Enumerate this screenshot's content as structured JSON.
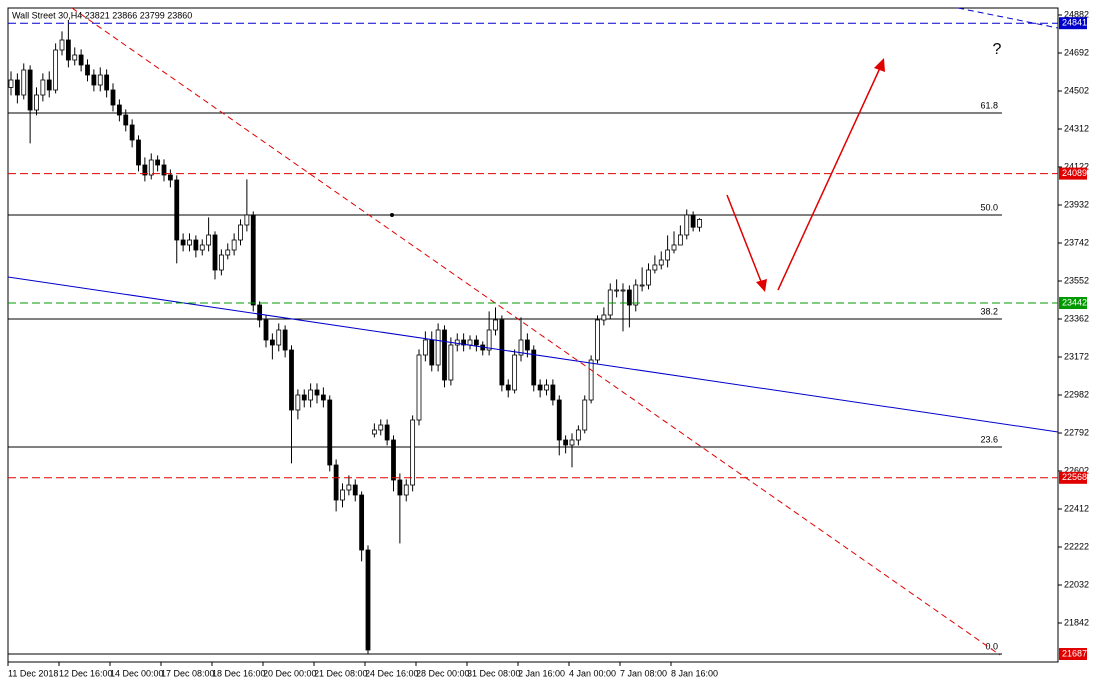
{
  "chart_data": {
    "type": "candlestick",
    "title": "Wall Street 30,H4  23821 23866 23799 23860",
    "categories": [
      "11 Dec 2018",
      null,
      null,
      null,
      null,
      null,
      null,
      null,
      "12 Dec 16:00",
      null,
      null,
      null,
      null,
      null,
      null,
      null,
      "14 Dec 00:00",
      null,
      null,
      null,
      null,
      null,
      null,
      null,
      "17 Dec 08:00",
      null,
      null,
      null,
      null,
      null,
      null,
      null,
      "18 Dec 16:00",
      null,
      null,
      null,
      null,
      null,
      null,
      null,
      "20 Dec 00:00",
      null,
      null,
      null,
      null,
      null,
      null,
      null,
      "21 Dec 08:00",
      null,
      null,
      null,
      null,
      null,
      null,
      null,
      "24 Dec 16:00",
      null,
      null,
      null,
      null,
      null,
      null,
      null,
      "28 Dec 00:00",
      null,
      null,
      null,
      null,
      null,
      null,
      null,
      "31 Dec 08:00",
      null,
      null,
      null,
      null,
      null,
      null,
      null,
      "2 Jan 16:00",
      null,
      null,
      null,
      null,
      null,
      null,
      null,
      "4 Jan 00:00",
      null,
      null,
      null,
      null,
      null,
      null,
      null,
      "7 Jan 08:00",
      null,
      null,
      null,
      null,
      null,
      null,
      null,
      "8 Jan 16:00",
      null,
      null,
      null,
      null
    ],
    "open": [
      24520,
      24557,
      24482,
      24607,
      24407,
      24482,
      24557,
      24507,
      24707,
      24757,
      24657,
      24682,
      24632,
      24582,
      24532,
      24582,
      24507,
      24432,
      24382,
      24332,
      24257,
      24132,
      24082,
      24157,
      24132,
      24082,
      24057,
      23757,
      23732,
      23757,
      23707,
      23732,
      23782,
      23607,
      23682,
      23707,
      23757,
      23832,
      23882,
      23432,
      23357,
      23257,
      23232,
      23307,
      23207,
      22907,
      22982,
      22957,
      23007,
      22982,
      22957,
      22632,
      22457,
      22507,
      22532,
      22482,
      22207,
      22787,
      22807,
      22832,
      22757,
      22557,
      22482,
      22532,
      22857,
      23182,
      23257,
      23132,
      23307,
      23057,
      23232,
      23257,
      23232,
      23257,
      23232,
      23207,
      23307,
      23357,
      23032,
      23007,
      23182,
      23257,
      23207,
      23032,
      23007,
      23032,
      22957,
      22757,
      22732,
      22757,
      22807,
      22957,
      23157,
      23357,
      23382,
      23507,
      23507,
      23507,
      23432,
      23532,
      23532,
      23607,
      23632,
      23657,
      23707,
      23732,
      23782,
      23882,
      23821
    ],
    "high": [
      24600,
      24590,
      24640,
      24630,
      24520,
      24590,
      24600,
      24740,
      24800,
      24857,
      24720,
      24710,
      24660,
      24610,
      24620,
      24610,
      24540,
      24460,
      24410,
      24360,
      24280,
      24170,
      24190,
      24180,
      24160,
      24110,
      24080,
      23790,
      23790,
      23780,
      23760,
      23870,
      23800,
      23710,
      23740,
      23790,
      23860,
      24060,
      23900,
      23450,
      23380,
      23290,
      23340,
      23330,
      23230,
      23010,
      23010,
      23040,
      23040,
      23020,
      22980,
      22660,
      22540,
      22580,
      22560,
      22500,
      22230,
      22840,
      22860,
      22860,
      22780,
      22590,
      22560,
      22880,
      23210,
      23300,
      23300,
      23340,
      23330,
      23270,
      23290,
      23290,
      23280,
      23280,
      23250,
      23400,
      23420,
      23380,
      23060,
      23210,
      23370,
      23290,
      23230,
      23060,
      23060,
      23060,
      22980,
      22780,
      22790,
      22830,
      22980,
      23180,
      23380,
      23420,
      23540,
      23560,
      23540,
      23530,
      23560,
      23620,
      23640,
      23680,
      23700,
      23780,
      23800,
      23830,
      23910,
      23900,
      23866
    ],
    "low": [
      24480,
      24440,
      24460,
      24240,
      24380,
      24450,
      24470,
      24490,
      24680,
      24620,
      24630,
      24600,
      24550,
      24500,
      24500,
      24470,
      24400,
      24350,
      24300,
      24220,
      24100,
      24050,
      24060,
      24100,
      24050,
      24020,
      23640,
      23700,
      23700,
      23670,
      23680,
      23700,
      23560,
      23580,
      23660,
      23680,
      23730,
      23800,
      23400,
      23320,
      23220,
      23160,
      23200,
      23170,
      22640,
      22860,
      22920,
      22920,
      22940,
      22920,
      22600,
      22400,
      22420,
      22480,
      22450,
      22150,
      21687,
      22770,
      22780,
      22730,
      22500,
      22240,
      22450,
      22500,
      22830,
      23150,
      23100,
      23100,
      23020,
      23030,
      23200,
      23200,
      23210,
      23200,
      23180,
      23180,
      23280,
      23000,
      22970,
      22990,
      23150,
      23170,
      23000,
      22970,
      22980,
      22930,
      22680,
      22690,
      22620,
      22730,
      22790,
      22940,
      23140,
      23330,
      23360,
      23470,
      23300,
      23320,
      23400,
      23500,
      23510,
      23590,
      23610,
      23620,
      23690,
      23740,
      23760,
      23800,
      23799
    ],
    "close": [
      24557,
      24482,
      24607,
      24407,
      24482,
      24557,
      24507,
      24707,
      24757,
      24657,
      24682,
      24632,
      24582,
      24532,
      24582,
      24507,
      24432,
      24382,
      24332,
      24257,
      24132,
      24082,
      24157,
      24132,
      24082,
      24057,
      23757,
      23732,
      23757,
      23707,
      23732,
      23782,
      23607,
      23682,
      23707,
      23757,
      23832,
      23882,
      23432,
      23357,
      23257,
      23232,
      23307,
      23207,
      22907,
      22982,
      22957,
      23007,
      22982,
      22957,
      22632,
      22457,
      22507,
      22532,
      22482,
      22207,
      21707,
      22807,
      22832,
      22757,
      22557,
      22482,
      22532,
      22857,
      23182,
      23257,
      23132,
      23307,
      23057,
      23232,
      23257,
      23232,
      23257,
      23232,
      23207,
      23307,
      23357,
      23032,
      23007,
      23182,
      23257,
      23207,
      23032,
      23007,
      23032,
      22957,
      22757,
      22732,
      22757,
      22807,
      22957,
      23157,
      23357,
      23382,
      23507,
      23507,
      23507,
      23432,
      23532,
      23532,
      23607,
      23632,
      23657,
      23707,
      23732,
      23782,
      23882,
      23821,
      23860
    ],
    "up_color": "#ffffff",
    "down_color": "#000000",
    "ylim": [
      21647,
      24957
    ],
    "yticks": [
      24882,
      24692,
      24502,
      24312,
      24122,
      23932,
      23742,
      23552,
      23362,
      23172,
      22982,
      22792,
      22602,
      22412,
      22222,
      22032,
      21842
    ],
    "levels": [
      {
        "value": 24841,
        "color": "#0000cc"
      },
      {
        "value": 24089,
        "color": "#e00000"
      },
      {
        "value": 23442,
        "color": "#009900"
      },
      {
        "value": 22568,
        "color": "#e00000"
      },
      {
        "value": 21687,
        "color": "#e00000"
      }
    ],
    "fib_levels": [
      {
        "label": "61.8",
        "value": 24392
      },
      {
        "label": "50.0",
        "value": 23882
      },
      {
        "label": "38.2",
        "value": 23362
      },
      {
        "label": "23.6",
        "value": 22722
      },
      {
        "label": "0.0",
        "value": 21687
      }
    ],
    "annotation": "?"
  }
}
